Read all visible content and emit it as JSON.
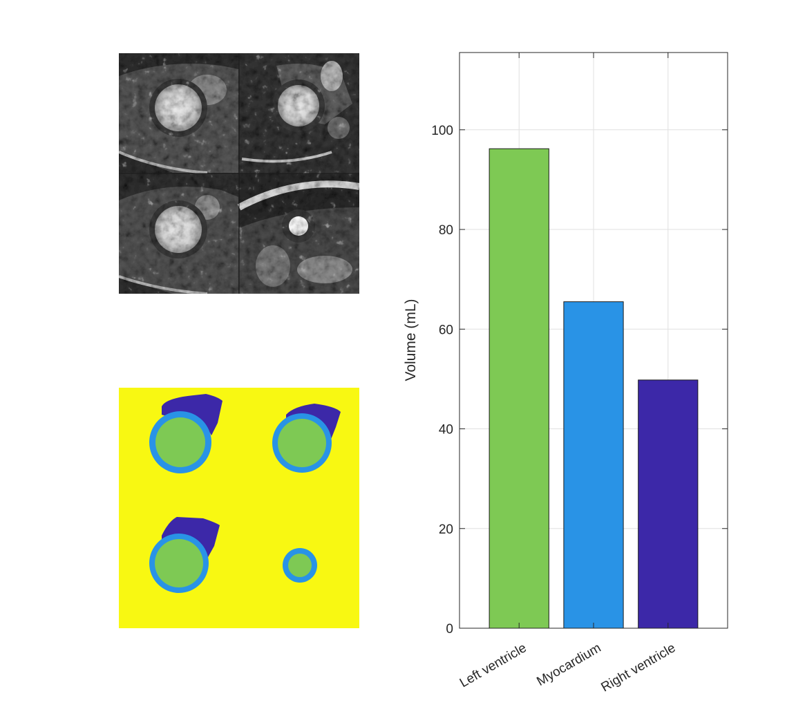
{
  "colors": {
    "background": "#ffffff",
    "left_ventricle": "#7ec954",
    "myocardium": "#2993e6",
    "right_ventricle": "#3c28a8",
    "segmentation_background": "#f8f812",
    "grid": "#e0e0e0",
    "axis": "#262626"
  },
  "mri_montage": {
    "icon": "mri-montage-image",
    "tiles": 4,
    "layout": "2x2 grid of short-axis cardiac MRI slices"
  },
  "segmentation_montage": {
    "icon": "segmentation-label-map",
    "tiles": 4,
    "classes": [
      "Background",
      "Left ventricle",
      "Myocardium",
      "Right ventricle"
    ]
  },
  "chart_data": {
    "type": "bar",
    "categories": [
      "Left ventricle",
      "Myocardium",
      "Right ventricle"
    ],
    "values": [
      96.2,
      65.5,
      49.8
    ],
    "colors": [
      "#7ec954",
      "#2993e6",
      "#3c28a8"
    ],
    "title": "",
    "xlabel": "",
    "ylabel": "Volume (mL)",
    "ylim": [
      0,
      115.5
    ],
    "xlim": [
      0.2,
      3.8
    ],
    "yticks": [
      0,
      20,
      40,
      60,
      80,
      100
    ],
    "ytick_labels": [
      "0",
      "20",
      "40",
      "60",
      "80",
      "100"
    ],
    "grid": true,
    "box": true,
    "xtick_rotation_deg": 30
  }
}
